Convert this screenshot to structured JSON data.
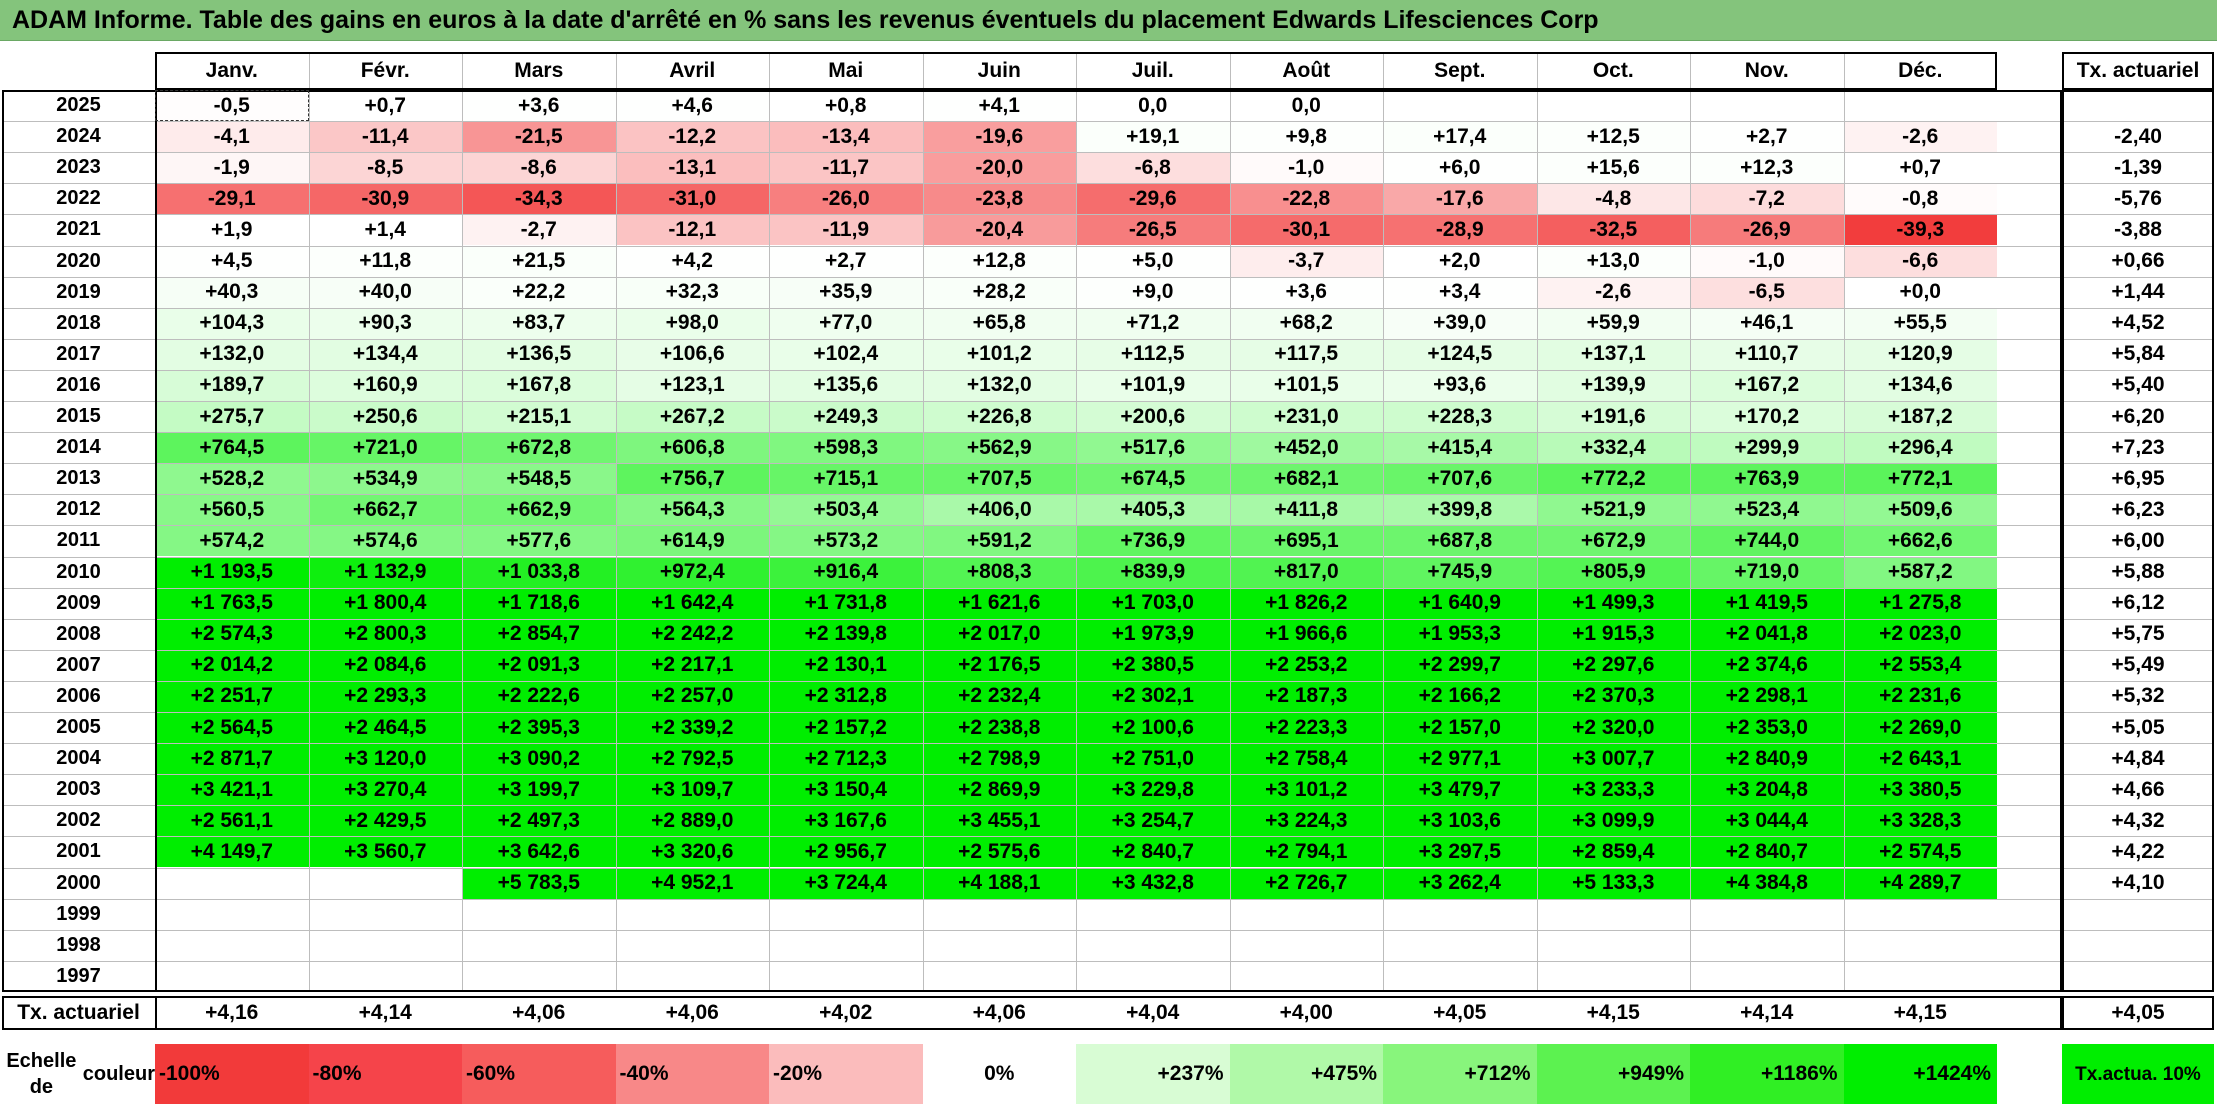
{
  "title": "ADAM Informe. Table des gains en euros à la date d'arrêté en % sans les revenus éventuels du placement Edwards Lifesciences Corp",
  "chart_data": {
    "type": "heatmap",
    "columns": [
      "Janv.",
      "Févr.",
      "Mars",
      "Avril",
      "Mai",
      "Juin",
      "Juil.",
      "Août",
      "Sept.",
      "Oct.",
      "Nov.",
      "Déc."
    ],
    "rate_column_label": "Tx. actuariel",
    "rows": [
      {
        "year": "2025",
        "values": [
          "-0,5",
          "+0,7",
          "+3,6",
          "+4,6",
          "+0,8",
          "+4,1",
          "0,0",
          "0,0",
          "",
          "",
          "",
          ""
        ],
        "rate": ""
      },
      {
        "year": "2024",
        "values": [
          "-4,1",
          "-11,4",
          "-21,5",
          "-12,2",
          "-13,4",
          "-19,6",
          "+19,1",
          "+9,8",
          "+17,4",
          "+12,5",
          "+2,7",
          "-2,6"
        ],
        "rate": "-2,40"
      },
      {
        "year": "2023",
        "values": [
          "-1,9",
          "-8,5",
          "-8,6",
          "-13,1",
          "-11,7",
          "-20,0",
          "-6,8",
          "-1,0",
          "+6,0",
          "+15,6",
          "+12,3",
          "+0,7"
        ],
        "rate": "-1,39"
      },
      {
        "year": "2022",
        "values": [
          "-29,1",
          "-30,9",
          "-34,3",
          "-31,0",
          "-26,0",
          "-23,8",
          "-29,6",
          "-22,8",
          "-17,6",
          "-4,8",
          "-7,2",
          "-0,8"
        ],
        "rate": "-5,76"
      },
      {
        "year": "2021",
        "values": [
          "+1,9",
          "+1,4",
          "-2,7",
          "-12,1",
          "-11,9",
          "-20,4",
          "-26,5",
          "-30,1",
          "-28,9",
          "-32,5",
          "-26,9",
          "-39,3"
        ],
        "rate": "-3,88"
      },
      {
        "year": "2020",
        "values": [
          "+4,5",
          "+11,8",
          "+21,5",
          "+4,2",
          "+2,7",
          "+12,8",
          "+5,0",
          "-3,7",
          "+2,0",
          "+13,0",
          "-1,0",
          "-6,6"
        ],
        "rate": "+0,66"
      },
      {
        "year": "2019",
        "values": [
          "+40,3",
          "+40,0",
          "+22,2",
          "+32,3",
          "+35,9",
          "+28,2",
          "+9,0",
          "+3,6",
          "+3,4",
          "-2,6",
          "-6,5",
          "+0,0"
        ],
        "rate": "+1,44"
      },
      {
        "year": "2018",
        "values": [
          "+104,3",
          "+90,3",
          "+83,7",
          "+98,0",
          "+77,0",
          "+65,8",
          "+71,2",
          "+68,2",
          "+39,0",
          "+59,9",
          "+46,1",
          "+55,5"
        ],
        "rate": "+4,52"
      },
      {
        "year": "2017",
        "values": [
          "+132,0",
          "+134,4",
          "+136,5",
          "+106,6",
          "+102,4",
          "+101,2",
          "+112,5",
          "+117,5",
          "+124,5",
          "+137,1",
          "+110,7",
          "+120,9"
        ],
        "rate": "+5,84"
      },
      {
        "year": "2016",
        "values": [
          "+189,7",
          "+160,9",
          "+167,8",
          "+123,1",
          "+135,6",
          "+132,0",
          "+101,9",
          "+101,5",
          "+93,6",
          "+139,9",
          "+167,2",
          "+134,6"
        ],
        "rate": "+5,40"
      },
      {
        "year": "2015",
        "values": [
          "+275,7",
          "+250,6",
          "+215,1",
          "+267,2",
          "+249,3",
          "+226,8",
          "+200,6",
          "+231,0",
          "+228,3",
          "+191,6",
          "+170,2",
          "+187,2"
        ],
        "rate": "+6,20"
      },
      {
        "year": "2014",
        "values": [
          "+764,5",
          "+721,0",
          "+672,8",
          "+606,8",
          "+598,3",
          "+562,9",
          "+517,6",
          "+452,0",
          "+415,4",
          "+332,4",
          "+299,9",
          "+296,4"
        ],
        "rate": "+7,23"
      },
      {
        "year": "2013",
        "values": [
          "+528,2",
          "+534,9",
          "+548,5",
          "+756,7",
          "+715,1",
          "+707,5",
          "+674,5",
          "+682,1",
          "+707,6",
          "+772,2",
          "+763,9",
          "+772,1"
        ],
        "rate": "+6,95"
      },
      {
        "year": "2012",
        "values": [
          "+560,5",
          "+662,7",
          "+662,9",
          "+564,3",
          "+503,4",
          "+406,0",
          "+405,3",
          "+411,8",
          "+399,8",
          "+521,9",
          "+523,4",
          "+509,6"
        ],
        "rate": "+6,23"
      },
      {
        "year": "2011",
        "values": [
          "+574,2",
          "+574,6",
          "+577,6",
          "+614,9",
          "+573,2",
          "+591,2",
          "+736,9",
          "+695,1",
          "+687,8",
          "+672,9",
          "+744,0",
          "+662,6"
        ],
        "rate": "+6,00"
      },
      {
        "year": "2010",
        "values": [
          "+1 193,5",
          "+1 132,9",
          "+1 033,8",
          "+972,4",
          "+916,4",
          "+808,3",
          "+839,9",
          "+817,0",
          "+745,9",
          "+805,9",
          "+719,0",
          "+587,2"
        ],
        "rate": "+5,88"
      },
      {
        "year": "2009",
        "values": [
          "+1 763,5",
          "+1 800,4",
          "+1 718,6",
          "+1 642,4",
          "+1 731,8",
          "+1 621,6",
          "+1 703,0",
          "+1 826,2",
          "+1 640,9",
          "+1 499,3",
          "+1 419,5",
          "+1 275,8"
        ],
        "rate": "+6,12"
      },
      {
        "year": "2008",
        "values": [
          "+2 574,3",
          "+2 800,3",
          "+2 854,7",
          "+2 242,2",
          "+2 139,8",
          "+2 017,0",
          "+1 973,9",
          "+1 966,6",
          "+1 953,3",
          "+1 915,3",
          "+2 041,8",
          "+2 023,0"
        ],
        "rate": "+5,75"
      },
      {
        "year": "2007",
        "values": [
          "+2 014,2",
          "+2 084,6",
          "+2 091,3",
          "+2 217,1",
          "+2 130,1",
          "+2 176,5",
          "+2 380,5",
          "+2 253,2",
          "+2 299,7",
          "+2 297,6",
          "+2 374,6",
          "+2 553,4"
        ],
        "rate": "+5,49"
      },
      {
        "year": "2006",
        "values": [
          "+2 251,7",
          "+2 293,3",
          "+2 222,6",
          "+2 257,0",
          "+2 312,8",
          "+2 232,4",
          "+2 302,1",
          "+2 187,3",
          "+2 166,2",
          "+2 370,3",
          "+2 298,1",
          "+2 231,6"
        ],
        "rate": "+5,32"
      },
      {
        "year": "2005",
        "values": [
          "+2 564,5",
          "+2 464,5",
          "+2 395,3",
          "+2 339,2",
          "+2 157,2",
          "+2 238,8",
          "+2 100,6",
          "+2 223,3",
          "+2 157,0",
          "+2 320,0",
          "+2 353,0",
          "+2 269,0"
        ],
        "rate": "+5,05"
      },
      {
        "year": "2004",
        "values": [
          "+2 871,7",
          "+3 120,0",
          "+3 090,2",
          "+2 792,5",
          "+2 712,3",
          "+2 798,9",
          "+2 751,0",
          "+2 758,4",
          "+2 977,1",
          "+3 007,7",
          "+2 840,9",
          "+2 643,1"
        ],
        "rate": "+4,84"
      },
      {
        "year": "2003",
        "values": [
          "+3 421,1",
          "+3 270,4",
          "+3 199,7",
          "+3 109,7",
          "+3 150,4",
          "+2 869,9",
          "+3 229,8",
          "+3 101,2",
          "+3 479,7",
          "+3 233,3",
          "+3 204,8",
          "+3 380,5"
        ],
        "rate": "+4,66"
      },
      {
        "year": "2002",
        "values": [
          "+2 561,1",
          "+2 429,5",
          "+2 497,3",
          "+2 889,0",
          "+3 167,6",
          "+3 455,1",
          "+3 254,7",
          "+3 224,3",
          "+3 103,6",
          "+3 099,9",
          "+3 044,4",
          "+3 328,3"
        ],
        "rate": "+4,32"
      },
      {
        "year": "2001",
        "values": [
          "+4 149,7",
          "+3 560,7",
          "+3 642,6",
          "+3 320,6",
          "+2 956,7",
          "+2 575,6",
          "+2 840,7",
          "+2 794,1",
          "+3 297,5",
          "+2 859,4",
          "+2 840,7",
          "+2 574,5"
        ],
        "rate": "+4,22"
      },
      {
        "year": "2000",
        "values": [
          "",
          "",
          "+5 783,5",
          "+4 952,1",
          "+3 724,4",
          "+4 188,1",
          "+3 432,8",
          "+2 726,7",
          "+3 262,4",
          "+5 133,3",
          "+4 384,8",
          "+4 289,7"
        ],
        "rate": "+4,10"
      },
      {
        "year": "1999",
        "values": [
          "",
          "",
          "",
          "",
          "",
          "",
          "",
          "",
          "",
          "",
          "",
          ""
        ],
        "rate": ""
      },
      {
        "year": "1998",
        "values": [
          "",
          "",
          "",
          "",
          "",
          "",
          "",
          "",
          "",
          "",
          "",
          ""
        ],
        "rate": ""
      },
      {
        "year": "1997",
        "values": [
          "",
          "",
          "",
          "",
          "",
          "",
          "",
          "",
          "",
          "",
          "",
          ""
        ],
        "rate": ""
      }
    ],
    "footer": {
      "label": "Tx. actuariel",
      "values": [
        "+4,16",
        "+4,14",
        "+4,06",
        "+4,06",
        "+4,02",
        "+4,06",
        "+4,04",
        "+4,00",
        "+4,05",
        "+4,15",
        "+4,14",
        "+4,15"
      ],
      "rate": "+4,05"
    },
    "color_scale": {
      "label_line1": "Echelle de",
      "label_line2": "couleur",
      "stops": [
        {
          "label": "-100%",
          "color": "#f23a3a",
          "align": "left"
        },
        {
          "label": "-80%",
          "color": "#f5444a",
          "align": "left"
        },
        {
          "label": "-60%",
          "color": "#f65c5c",
          "align": "left"
        },
        {
          "label": "-40%",
          "color": "#f88888",
          "align": "left"
        },
        {
          "label": "-20%",
          "color": "#fbbcbc",
          "align": "left"
        },
        {
          "label": "0%",
          "color": "#ffffff",
          "align": "center"
        },
        {
          "label": "+237%",
          "color": "#d8fcd4",
          "align": "right"
        },
        {
          "label": "+475%",
          "color": "#b0f9a8",
          "align": "right"
        },
        {
          "label": "+712%",
          "color": "#88f57c",
          "align": "right"
        },
        {
          "label": "+949%",
          "color": "#5cf250",
          "align": "right"
        },
        {
          "label": "+1186%",
          "color": "#30ef24",
          "align": "right"
        },
        {
          "label": "+1424%",
          "color": "#00ee00",
          "align": "right"
        }
      ],
      "rate_label_line1": "Tx.",
      "rate_label_line2": "actua. 10%",
      "rate_color": "#00ee00"
    }
  }
}
